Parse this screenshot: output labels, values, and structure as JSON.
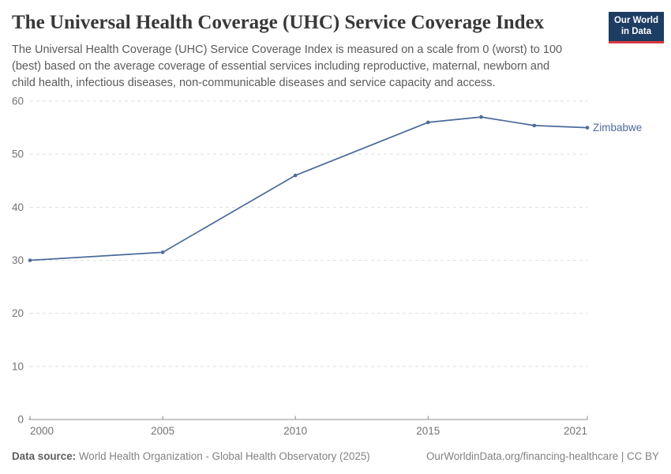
{
  "header": {
    "title": "The Universal Health Coverage (UHC) Service Coverage Index",
    "subtitle": "The Universal Health Coverage (UHC) Service Coverage Index is measured on a scale from 0 (worst) to 100\n(best) based on the average coverage of essential services including reproductive, maternal, newborn and\nchild health, infectious diseases, non-communicable diseases and service capacity and access.",
    "logo_line1": "Our World",
    "logo_line2": "in Data"
  },
  "chart_data": {
    "type": "line",
    "title": "The Universal Health Coverage (UHC) Service Coverage Index",
    "entity": "Zimbabwe",
    "series": [
      {
        "name": "Zimbabwe",
        "color": "#4c6a9c",
        "points": [
          {
            "x": 2000,
            "y": 30
          },
          {
            "x": 2005,
            "y": 31.5
          },
          {
            "x": 2010,
            "y": 46
          },
          {
            "x": 2015,
            "y": 56
          },
          {
            "x": 2017,
            "y": 57
          },
          {
            "x": 2019,
            "y": 55.4
          },
          {
            "x": 2021,
            "y": 55
          }
        ]
      }
    ],
    "x_ticks": [
      2000,
      2005,
      2010,
      2015,
      2021
    ],
    "y_ticks": [
      0,
      10,
      20,
      30,
      40,
      50,
      60
    ],
    "x_range": [
      2000,
      2021
    ],
    "y_range": [
      0,
      60
    ],
    "xlabel": "",
    "ylabel": "",
    "grid": "horizontal-dashed",
    "legend_position": "end-of-line"
  },
  "footer": {
    "datasource_label": "Data source:",
    "datasource_text": "World Health Organization - Global Health Observatory (2025)",
    "attribution": "OurWorldinData.org/financing-healthcare | CC BY"
  },
  "colors": {
    "line": "#4c6a9c",
    "grid": "#dedede",
    "axis": "#8f8f8f",
    "tick_text": "#737373",
    "logo_bg": "#1d3d63",
    "logo_accent": "#d7393f"
  }
}
